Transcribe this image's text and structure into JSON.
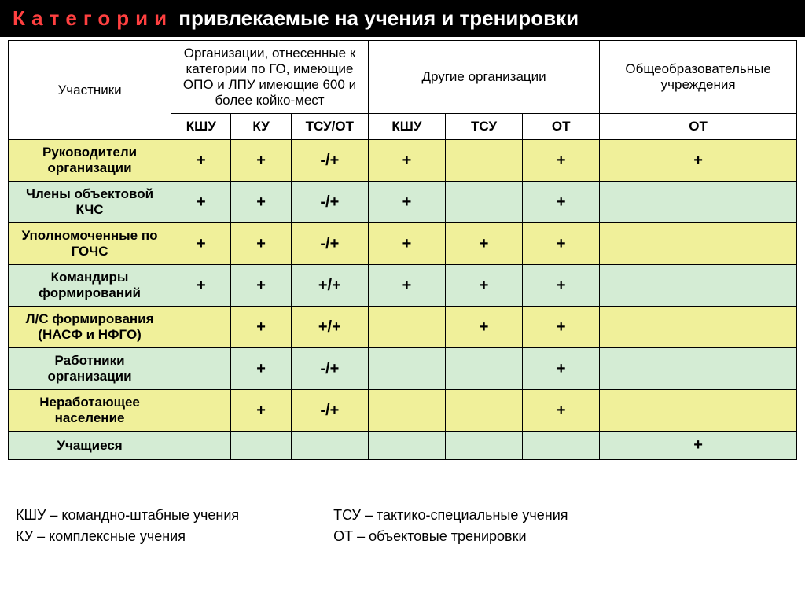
{
  "title": {
    "red": "Категории",
    "rest": "привлекаемые на учения и тренировки"
  },
  "headers": {
    "participants": "Участники",
    "org1": "Организации, отнесенные к категории по ГО, имеющие ОПО и ЛПУ имеющие 600 и более койко-мест",
    "org2": "Другие организации",
    "org3": "Общеобразовательные учреждения",
    "sub": [
      "КШУ",
      "КУ",
      "ТСУ/ОТ",
      "КШУ",
      "ТСУ",
      "ОТ",
      "ОТ"
    ]
  },
  "rows": [
    {
      "label": "Руководители организации",
      "cells": [
        "+",
        "+",
        "-/+",
        "+",
        "",
        "+",
        "+"
      ],
      "band": "yellow"
    },
    {
      "label": "Члены объектовой КЧС",
      "cells": [
        "+",
        "+",
        "-/+",
        "+",
        "",
        "+",
        ""
      ],
      "band": "green"
    },
    {
      "label": "Уполномоченные по ГОЧС",
      "cells": [
        "+",
        "+",
        "-/+",
        "+",
        "+",
        "+",
        ""
      ],
      "band": "yellow"
    },
    {
      "label": "Командиры формирований",
      "cells": [
        "+",
        "+",
        "+/+",
        "+",
        "+",
        "+",
        ""
      ],
      "band": "green"
    },
    {
      "label": "Л/С формирования (НАСФ и НФГО)",
      "cells": [
        "",
        "+",
        "+/+",
        "",
        "+",
        "+",
        ""
      ],
      "band": "yellow"
    },
    {
      "label": "Работники организации",
      "cells": [
        "",
        "+",
        "-/+",
        "",
        "",
        "+",
        ""
      ],
      "band": "green"
    },
    {
      "label": "Неработающее население",
      "cells": [
        "",
        "+",
        "-/+",
        "",
        "",
        "+",
        ""
      ],
      "band": "yellow"
    },
    {
      "label": "Учащиеся",
      "cells": [
        "",
        "",
        "",
        "",
        "",
        "",
        "+"
      ],
      "band": "green"
    }
  ],
  "legend": {
    "left": [
      "КШУ – командно-штабные учения",
      "КУ – комплексные учения"
    ],
    "right": [
      "ТСУ – тактико-специальные учения",
      "ОТ – объектовые тренировки"
    ]
  }
}
